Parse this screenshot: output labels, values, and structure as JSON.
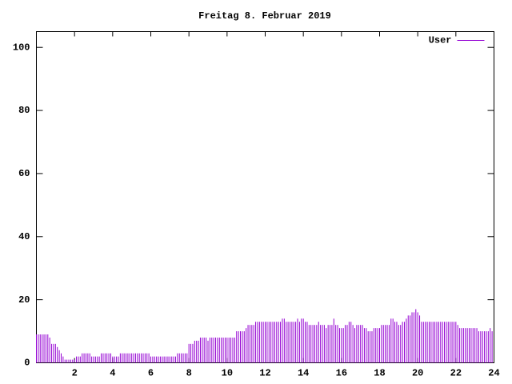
{
  "chart_data": {
    "type": "impulse",
    "title": "Freitag 8. Februar 2019",
    "x": [
      0,
      0.1,
      0.2,
      0.3,
      0.4,
      0.5,
      0.6,
      0.7,
      0.8,
      0.9,
      1,
      1.1,
      1.2,
      1.3,
      1.4,
      1.5,
      1.6,
      1.7,
      1.8,
      1.9,
      2,
      2.1,
      2.2,
      2.3,
      2.4,
      2.5,
      2.6,
      2.7,
      2.8,
      2.9,
      3,
      3.1,
      3.2,
      3.3,
      3.4,
      3.5,
      3.6,
      3.7,
      3.8,
      3.9,
      4,
      4.1,
      4.2,
      4.3,
      4.4,
      4.5,
      4.6,
      4.7,
      4.8,
      4.9,
      5,
      5.1,
      5.2,
      5.3,
      5.4,
      5.5,
      5.6,
      5.7,
      5.8,
      5.9,
      6,
      6.1,
      6.2,
      6.3,
      6.4,
      6.5,
      6.6,
      6.7,
      6.8,
      6.9,
      7,
      7.1,
      7.2,
      7.3,
      7.4,
      7.5,
      7.6,
      7.7,
      7.8,
      7.9,
      8,
      8.1,
      8.2,
      8.3,
      8.4,
      8.5,
      8.6,
      8.7,
      8.8,
      8.9,
      9,
      9.1,
      9.2,
      9.3,
      9.4,
      9.5,
      9.6,
      9.7,
      9.8,
      9.9,
      10,
      10.1,
      10.2,
      10.3,
      10.4,
      10.5,
      10.6,
      10.7,
      10.8,
      10.9,
      11,
      11.1,
      11.2,
      11.3,
      11.4,
      11.5,
      11.6,
      11.7,
      11.8,
      11.9,
      12,
      12.1,
      12.2,
      12.3,
      12.4,
      12.5,
      12.6,
      12.7,
      12.8,
      12.9,
      13,
      13.1,
      13.2,
      13.3,
      13.4,
      13.5,
      13.6,
      13.7,
      13.8,
      13.9,
      14,
      14.1,
      14.2,
      14.3,
      14.4,
      14.5,
      14.6,
      14.7,
      14.8,
      14.9,
      15,
      15.1,
      15.2,
      15.3,
      15.4,
      15.5,
      15.6,
      15.7,
      15.8,
      15.9,
      16,
      16.1,
      16.2,
      16.3,
      16.4,
      16.5,
      16.6,
      16.7,
      16.8,
      16.9,
      17,
      17.1,
      17.2,
      17.3,
      17.4,
      17.5,
      17.6,
      17.7,
      17.8,
      17.9,
      18,
      18.1,
      18.2,
      18.3,
      18.4,
      18.5,
      18.6,
      18.7,
      18.8,
      18.9,
      19,
      19.1,
      19.2,
      19.3,
      19.4,
      19.5,
      19.6,
      19.7,
      19.8,
      19.9,
      20,
      20.1,
      20.2,
      20.3,
      20.4,
      20.5,
      20.6,
      20.7,
      20.8,
      20.9,
      21,
      21.1,
      21.2,
      21.3,
      21.4,
      21.5,
      21.6,
      21.7,
      21.8,
      21.9,
      22,
      22.1,
      22.2,
      22.3,
      22.4,
      22.5,
      22.6,
      22.7,
      22.8,
      22.9,
      23,
      23.1,
      23.2,
      23.3,
      23.4,
      23.5,
      23.6,
      23.7,
      23.8,
      23.9
    ],
    "series": [
      {
        "name": "User",
        "color": "#9400d3",
        "values": [
          9,
          9,
          9,
          9,
          9,
          9,
          9,
          8,
          6,
          6,
          6,
          5,
          4,
          3,
          2,
          1,
          1,
          1,
          1,
          1,
          1,
          2,
          2,
          2,
          3,
          3,
          3,
          3,
          3,
          2,
          2,
          2,
          2,
          2,
          3,
          3,
          3,
          3,
          3,
          3,
          2,
          2,
          2,
          2,
          3,
          3,
          3,
          3,
          3,
          3,
          3,
          3,
          3,
          3,
          3,
          3,
          3,
          3,
          3,
          3,
          2,
          2,
          2,
          2,
          2,
          2,
          2,
          2,
          2,
          2,
          2,
          2,
          2,
          2,
          3,
          3,
          3,
          3,
          3,
          3,
          6,
          6,
          6,
          7,
          7,
          7,
          8,
          8,
          8,
          8,
          7,
          8,
          8,
          8,
          8,
          8,
          8,
          8,
          8,
          8,
          8,
          8,
          8,
          8,
          8,
          10,
          10,
          10,
          10,
          10,
          11,
          12,
          12,
          12,
          12,
          13,
          13,
          13,
          13,
          13,
          13,
          13,
          13,
          13,
          13,
          13,
          13,
          13,
          13,
          14,
          14,
          13,
          13,
          13,
          13,
          13,
          13,
          14,
          13,
          14,
          14,
          13,
          13,
          12,
          12,
          12,
          12,
          12,
          13,
          12,
          12,
          12,
          11,
          12,
          12,
          12,
          14,
          12,
          12,
          11,
          11,
          11,
          12,
          12,
          13,
          13,
          12,
          11,
          12,
          12,
          12,
          12,
          11,
          11,
          10,
          10,
          10,
          11,
          11,
          11,
          11,
          12,
          12,
          12,
          12,
          12,
          14,
          14,
          13,
          13,
          12,
          12,
          13,
          13,
          14,
          15,
          15,
          16,
          16,
          17,
          16,
          15,
          13,
          13,
          13,
          13,
          13,
          13,
          13,
          13,
          13,
          13,
          13,
          13,
          13,
          13,
          13,
          13,
          13,
          13,
          13,
          12,
          11,
          11,
          11,
          11,
          11,
          11,
          11,
          11,
          11,
          11,
          10,
          10,
          10,
          10,
          10,
          10,
          11,
          10
        ]
      }
    ],
    "xlim": [
      0,
      24
    ],
    "xticks": [
      2,
      4,
      6,
      8,
      10,
      12,
      14,
      16,
      18,
      20,
      22,
      24
    ],
    "ylim": [
      0,
      105
    ],
    "yticks": [
      0,
      20,
      40,
      60,
      80,
      100
    ],
    "legend": "top-right"
  }
}
